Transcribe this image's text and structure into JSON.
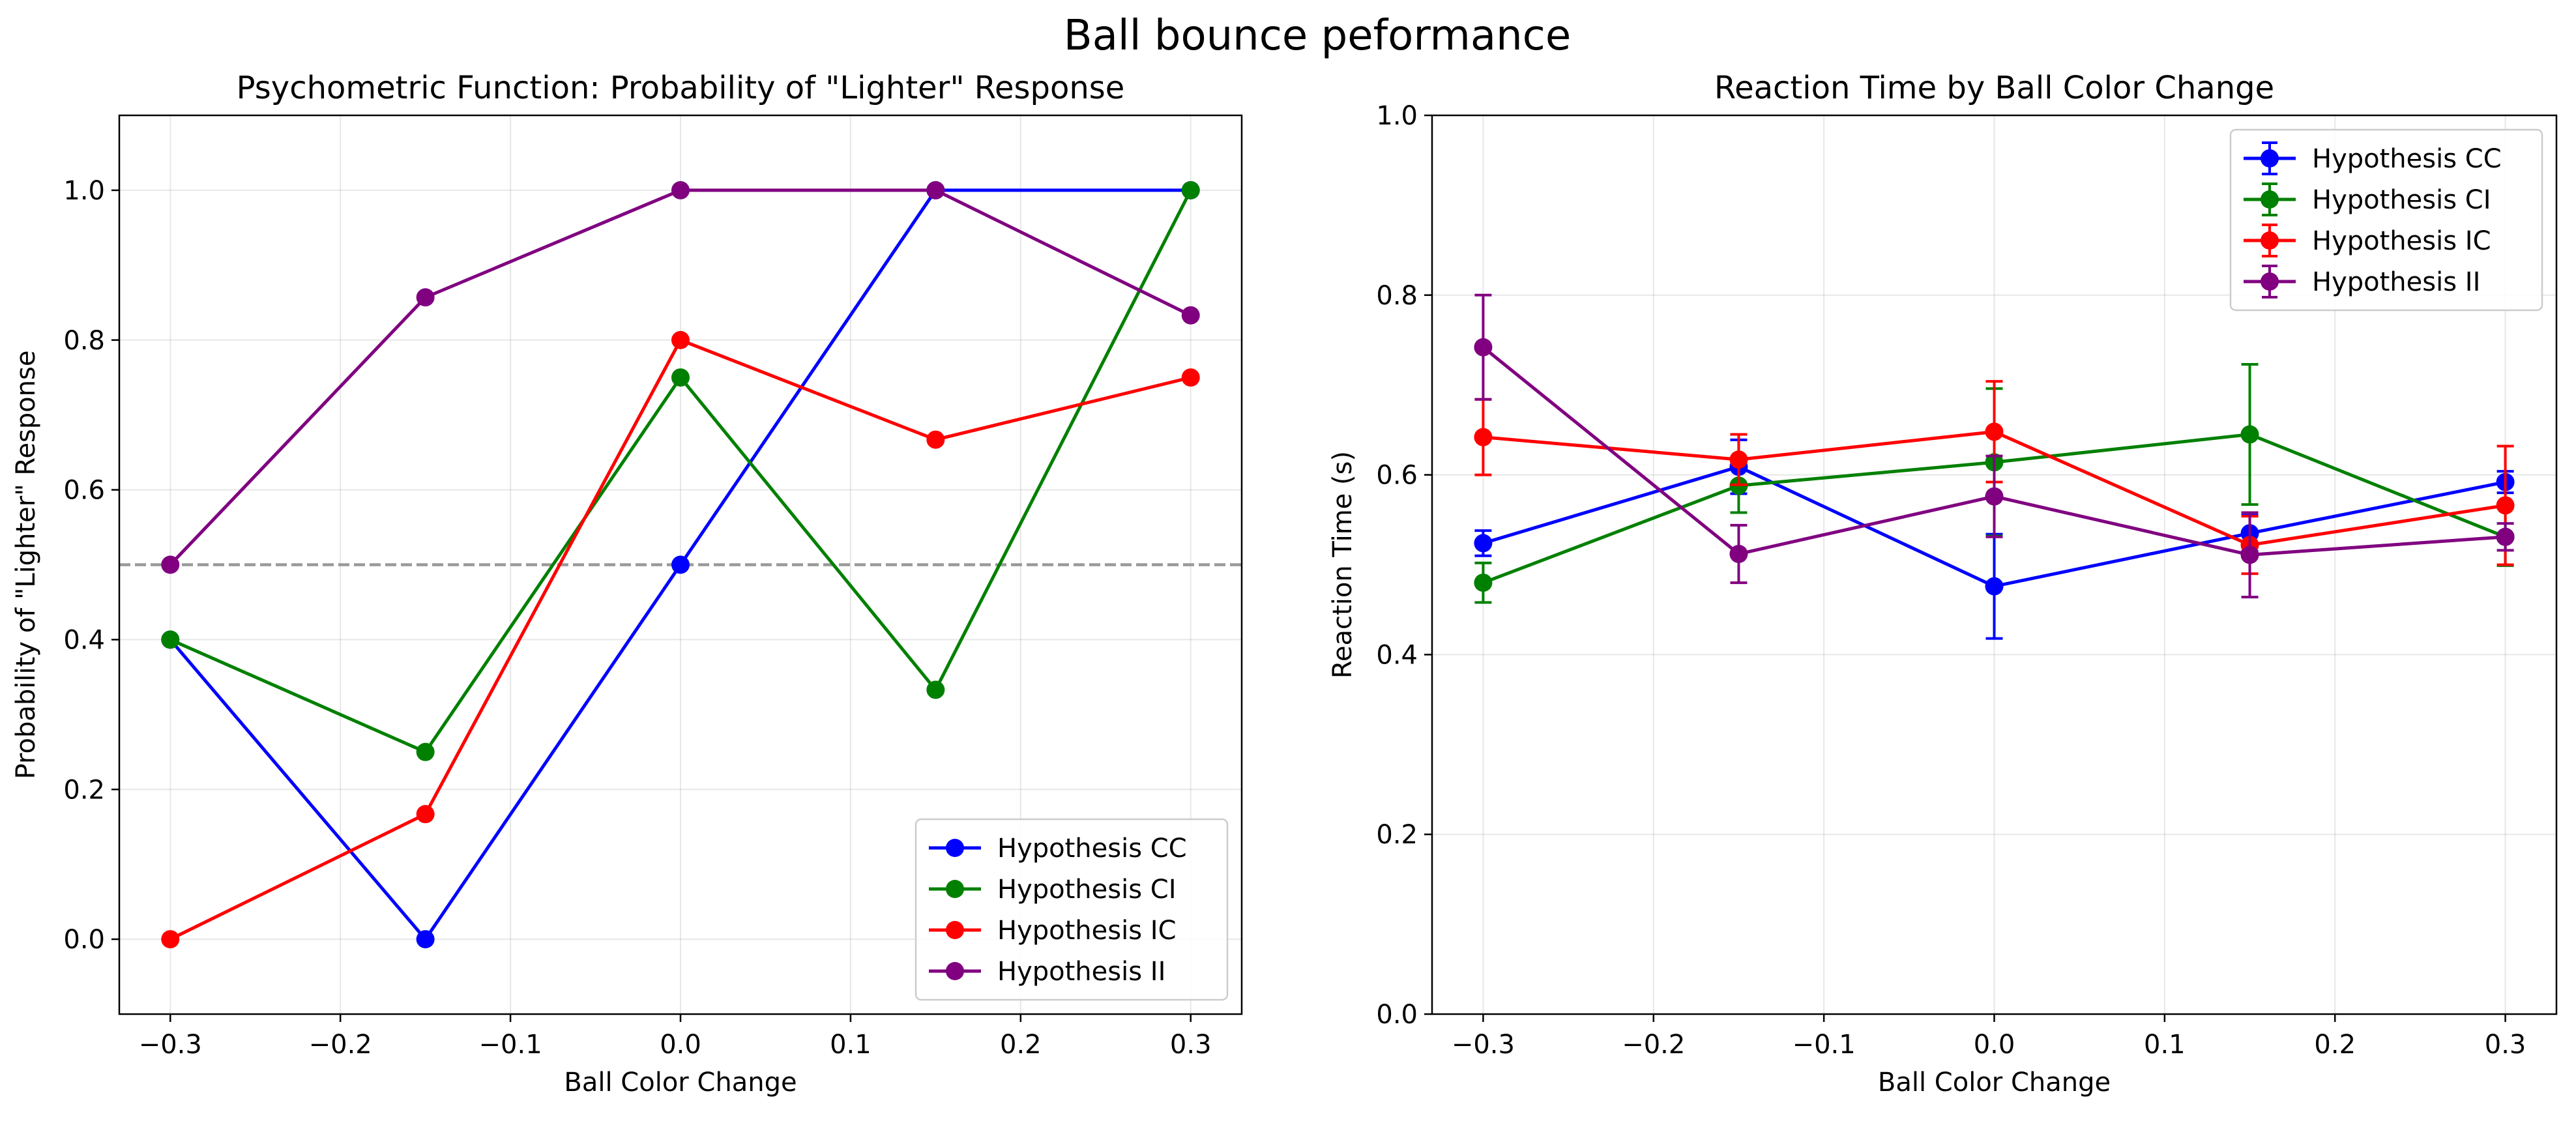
{
  "figure": {
    "suptitle": "Ball bounce peformance"
  },
  "chart_data": [
    {
      "type": "line",
      "title": "Psychometric Function: Probability of \"Lighter\" Response",
      "xlabel": "Ball Color Change",
      "ylabel": "Probability of \"Lighter\" Response",
      "xlim": [
        -0.33,
        0.33
      ],
      "ylim": [
        -0.1,
        1.1
      ],
      "xticks": [
        -0.3,
        -0.2,
        -0.1,
        0.0,
        0.1,
        0.2,
        0.3
      ],
      "xticklabels": [
        "−0.3",
        "−0.2",
        "−0.1",
        "0.0",
        "0.1",
        "0.2",
        "0.3"
      ],
      "yticks": [
        0.0,
        0.2,
        0.4,
        0.6,
        0.8,
        1.0
      ],
      "yticklabels": [
        "0.0",
        "0.2",
        "0.4",
        "0.6",
        "0.8",
        "1.0"
      ],
      "grid": true,
      "legend_position": "lower-right",
      "reference_line": {
        "y": 0.5,
        "style": "dashed",
        "color": "#999999"
      },
      "x": [
        -0.3,
        -0.15,
        0.0,
        0.15,
        0.3
      ],
      "series": [
        {
          "name": "Hypothesis CC",
          "color": "#0000ff",
          "values": [
            0.4,
            0.0,
            0.5,
            1.0,
            1.0
          ]
        },
        {
          "name": "Hypothesis CI",
          "color": "#008000",
          "values": [
            0.4,
            0.25,
            0.75,
            0.333,
            1.0
          ]
        },
        {
          "name": "Hypothesis IC",
          "color": "#ff0000",
          "values": [
            0.0,
            0.167,
            0.8,
            0.667,
            0.75
          ]
        },
        {
          "name": "Hypothesis II",
          "color": "#800080",
          "values": [
            0.5,
            0.857,
            1.0,
            1.0,
            0.833
          ]
        }
      ]
    },
    {
      "type": "line",
      "title": "Reaction Time by Ball Color Change",
      "xlabel": "Ball Color Change",
      "ylabel": "Reaction Time (s)",
      "xlim": [
        -0.33,
        0.33
      ],
      "ylim": [
        0.0,
        1.0
      ],
      "xticks": [
        -0.3,
        -0.2,
        -0.1,
        0.0,
        0.1,
        0.2,
        0.3
      ],
      "xticklabels": [
        "−0.3",
        "−0.2",
        "−0.1",
        "0.0",
        "0.1",
        "0.2",
        "0.3"
      ],
      "yticks": [
        0.0,
        0.2,
        0.4,
        0.6,
        0.8,
        1.0
      ],
      "yticklabels": [
        "0.0",
        "0.2",
        "0.4",
        "0.6",
        "0.8",
        "1.0"
      ],
      "grid": true,
      "legend_position": "upper-right",
      "error_bars": true,
      "x": [
        -0.3,
        -0.15,
        0.0,
        0.15,
        0.3
      ],
      "series": [
        {
          "name": "Hypothesis CC",
          "color": "#0000ff",
          "values": [
            0.524,
            0.609,
            0.476,
            0.535,
            0.592
          ],
          "errors": [
            0.014,
            0.03,
            0.058,
            0.02,
            0.012
          ]
        },
        {
          "name": "Hypothesis CI",
          "color": "#008000",
          "values": [
            0.48,
            0.588,
            0.614,
            0.645,
            0.531
          ],
          "errors": [
            0.022,
            0.03,
            0.082,
            0.078,
            0.032
          ]
        },
        {
          "name": "Hypothesis IC",
          "color": "#ff0000",
          "values": [
            0.642,
            0.617,
            0.648,
            0.522,
            0.566
          ],
          "errors": [
            0.042,
            0.028,
            0.056,
            0.032,
            0.066
          ]
        },
        {
          "name": "Hypothesis II",
          "color": "#800080",
          "values": [
            0.742,
            0.512,
            0.576,
            0.511,
            0.531
          ],
          "errors": [
            0.058,
            0.032,
            0.045,
            0.047,
            0.015
          ]
        }
      ]
    }
  ]
}
